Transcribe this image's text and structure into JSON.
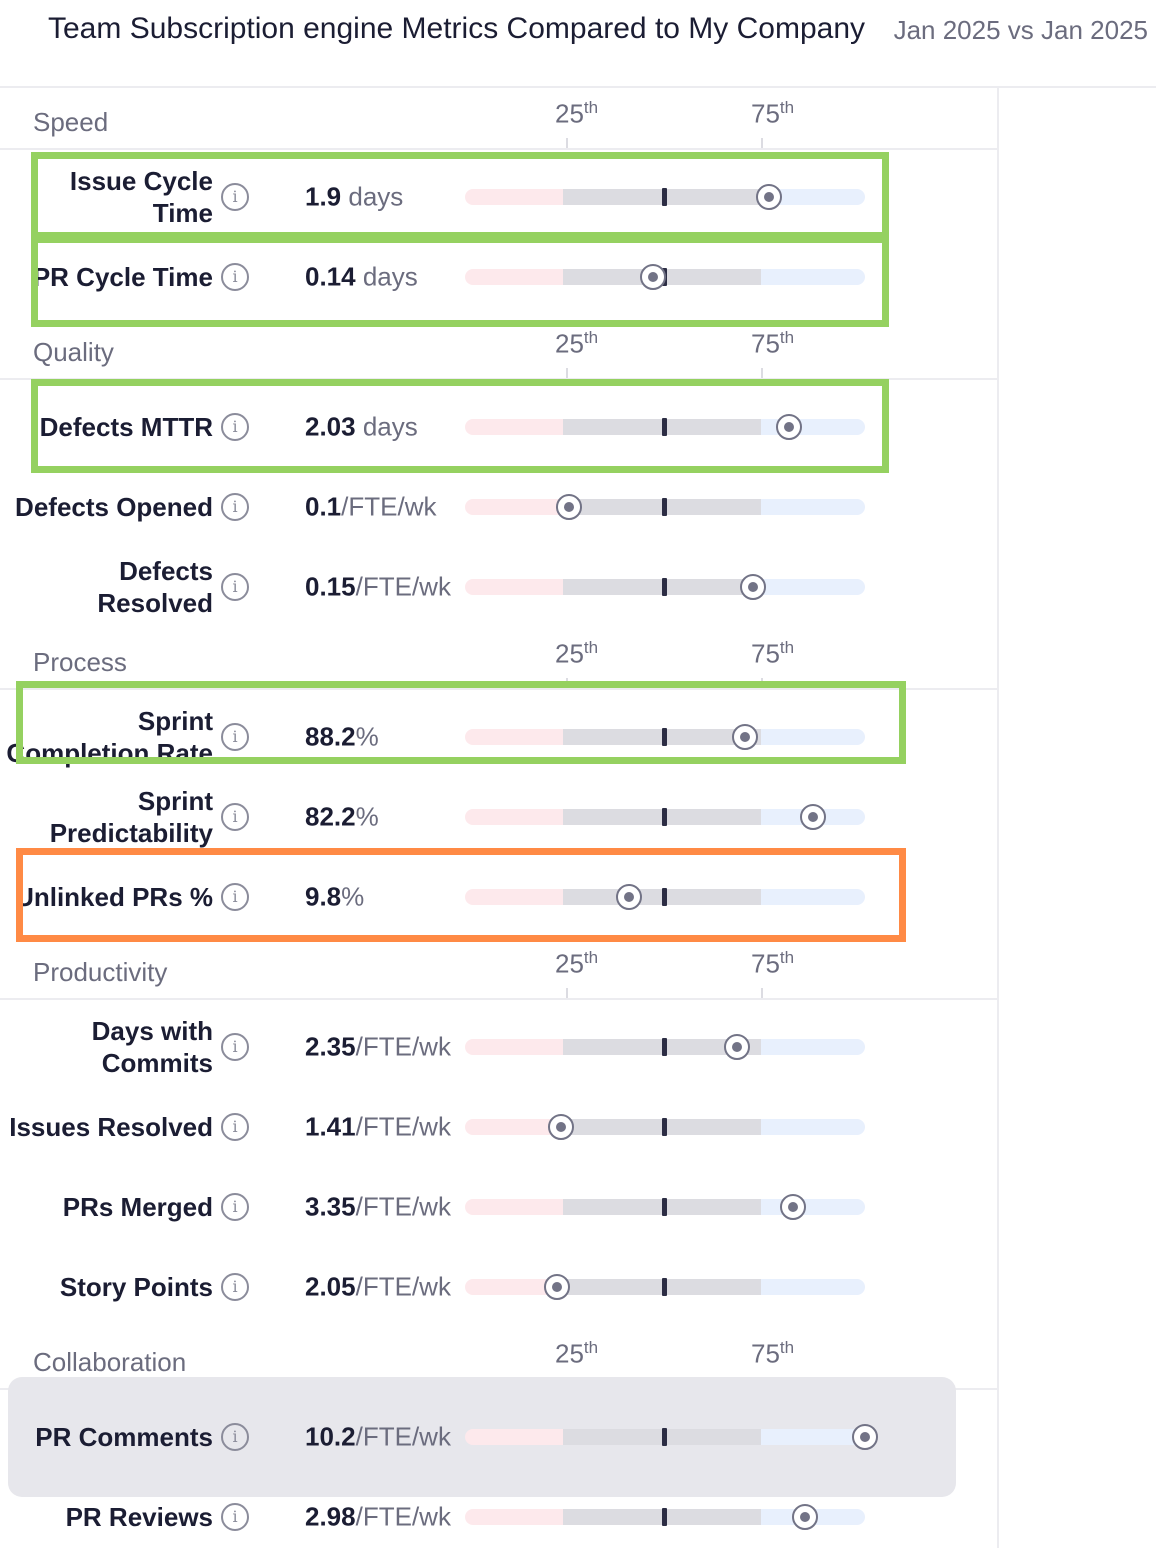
{
  "header": {
    "title": "Team Subscription engine Metrics Compared to My Company",
    "range": "Jan 2025 vs Jan 2025"
  },
  "percentile_labels": {
    "low": "25",
    "high": "75",
    "suffix": "th"
  },
  "sections": [
    {
      "label": "Speed",
      "metrics": [
        {
          "name": "Issue Cycle Time",
          "value": "1.9",
          "unit": " days",
          "position_pct": 76,
          "highlight": "green"
        },
        {
          "name": "PR Cycle Time",
          "value": "0.14",
          "unit": " days",
          "position_pct": 47,
          "highlight": "green"
        }
      ]
    },
    {
      "label": "Quality",
      "metrics": [
        {
          "name": "Defects MTTR",
          "value": "2.03",
          "unit": " days",
          "position_pct": 81,
          "highlight": "green"
        },
        {
          "name": "Defects Opened",
          "value": "0.1",
          "unit": "/FTE/wk",
          "position_pct": 26
        },
        {
          "name": "Defects Resolved",
          "value": "0.15",
          "unit": "/FTE/wk",
          "position_pct": 72
        }
      ]
    },
    {
      "label": "Process",
      "metrics": [
        {
          "name": "Sprint Completion Rate",
          "value": "88.2",
          "unit": "%",
          "position_pct": 70,
          "highlight": "green"
        },
        {
          "name": "Sprint Predictability",
          "value": "82.2",
          "unit": "%",
          "position_pct": 87
        },
        {
          "name": "Unlinked PRs %",
          "value": "9.8",
          "unit": "%",
          "position_pct": 41,
          "highlight": "orange"
        }
      ]
    },
    {
      "label": "Productivity",
      "metrics": [
        {
          "name": "Days with Commits",
          "value": "2.35",
          "unit": "/FTE/wk",
          "position_pct": 68
        },
        {
          "name": "Issues Resolved",
          "value": "1.41",
          "unit": "/FTE/wk",
          "position_pct": 24
        },
        {
          "name": "PRs Merged",
          "value": "3.35",
          "unit": "/FTE/wk",
          "position_pct": 82
        },
        {
          "name": "Story Points",
          "value": "2.05",
          "unit": "/FTE/wk",
          "position_pct": 23
        }
      ]
    },
    {
      "label": "Collaboration",
      "metrics": [
        {
          "name": "PR Comments",
          "value": "10.2",
          "unit": "/FTE/wk",
          "position_pct": 100,
          "selected": true
        },
        {
          "name": "PR Reviews",
          "value": "2.98",
          "unit": "/FTE/wk",
          "position_pct": 85
        }
      ]
    }
  ],
  "colors": {
    "below_25th": "#fde9ec",
    "middle": "#dcdce1",
    "above_75th": "#e8f0fd",
    "green_highlight": "#95d160",
    "orange_highlight": "#ff8a45"
  }
}
